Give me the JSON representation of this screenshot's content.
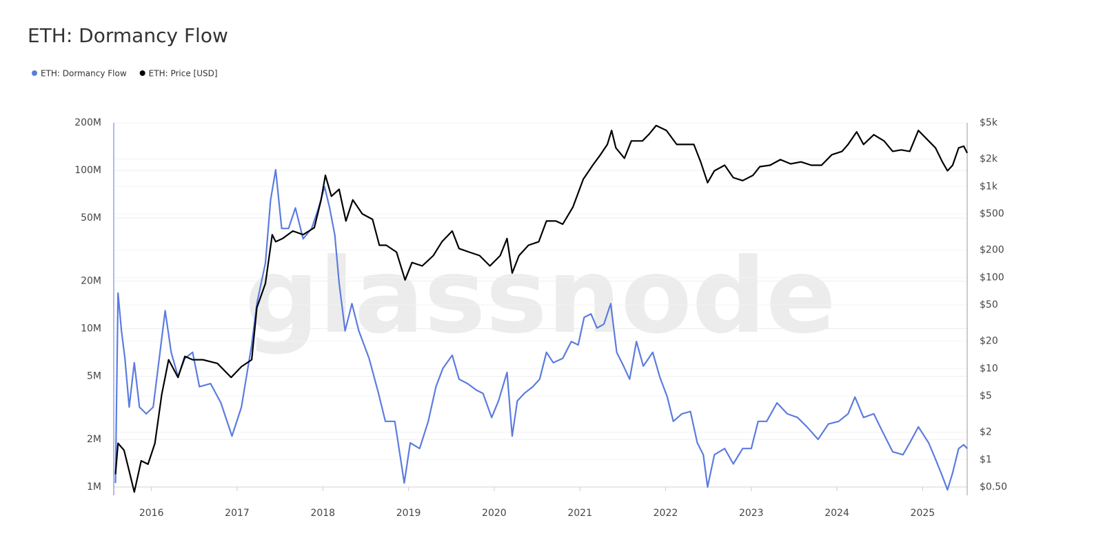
{
  "chart_data": {
    "type": "line",
    "title": "ETH: Dormancy Flow",
    "watermark": "glassnode",
    "yscale": "log",
    "y2scale": "log",
    "grid": true,
    "legend": "top-left",
    "xlim": [
      2015.56,
      2025.52
    ],
    "xticks": [
      2016,
      2017,
      2018,
      2019,
      2020,
      2021,
      2022,
      2023,
      2024,
      2025
    ],
    "ylim": [
      1000000,
      200000000
    ],
    "yticks": [
      {
        "value": 1000000,
        "label": "1M"
      },
      {
        "value": 2000000,
        "label": "2M"
      },
      {
        "value": 5000000,
        "label": "5M"
      },
      {
        "value": 10000000,
        "label": "10M"
      },
      {
        "value": 20000000,
        "label": "20M"
      },
      {
        "value": 50000000,
        "label": "50M"
      },
      {
        "value": 100000000,
        "label": "100M"
      },
      {
        "value": 200000000,
        "label": "200M"
      }
    ],
    "y2lim": [
      0.5,
      5000
    ],
    "y2ticks": [
      {
        "value": 0.5,
        "label": "$0.50"
      },
      {
        "value": 1,
        "label": "$1"
      },
      {
        "value": 2,
        "label": "$2"
      },
      {
        "value": 5,
        "label": "$5"
      },
      {
        "value": 10,
        "label": "$10"
      },
      {
        "value": 20,
        "label": "$20"
      },
      {
        "value": 50,
        "label": "$50"
      },
      {
        "value": 100,
        "label": "$100"
      },
      {
        "value": 200,
        "label": "$200"
      },
      {
        "value": 500,
        "label": "$500"
      },
      {
        "value": 1000,
        "label": "$1k"
      },
      {
        "value": 2000,
        "label": "$2k"
      },
      {
        "value": 5000,
        "label": "$5k"
      }
    ],
    "series": [
      {
        "name": "ETH: Dormancy Flow",
        "color": "#5b7be0",
        "axis": "y",
        "x": [
          2015.58,
          2015.61,
          2015.65,
          2015.69,
          2015.74,
          2015.8,
          2015.86,
          2015.94,
          2016.02,
          2016.1,
          2016.16,
          2016.23,
          2016.31,
          2016.39,
          2016.48,
          2016.56,
          2016.69,
          2016.81,
          2016.94,
          2017.05,
          2017.17,
          2017.23,
          2017.33,
          2017.39,
          2017.45,
          2017.52,
          2017.6,
          2017.68,
          2017.77,
          2017.87,
          2017.95,
          2018.02,
          2018.08,
          2018.14,
          2018.19,
          2018.26,
          2018.34,
          2018.42,
          2018.54,
          2018.65,
          2018.73,
          2018.84,
          2018.9,
          2018.95,
          2019.02,
          2019.13,
          2019.23,
          2019.32,
          2019.4,
          2019.51,
          2019.59,
          2019.69,
          2019.79,
          2019.87,
          2019.97,
          2020.05,
          2020.15,
          2020.21,
          2020.27,
          2020.35,
          2020.45,
          2020.53,
          2020.61,
          2020.69,
          2020.8,
          2020.9,
          2020.98,
          2021.05,
          2021.13,
          2021.2,
          2021.28,
          2021.36,
          2021.43,
          2021.51,
          2021.58,
          2021.66,
          2021.74,
          2021.85,
          2021.93,
          2022.02,
          2022.09,
          2022.19,
          2022.29,
          2022.37,
          2022.44,
          2022.49,
          2022.57,
          2022.69,
          2022.79,
          2022.9,
          2023.0,
          2023.08,
          2023.18,
          2023.3,
          2023.42,
          2023.54,
          2023.65,
          2023.78,
          2023.9,
          2024.02,
          2024.13,
          2024.21,
          2024.31,
          2024.43,
          2024.53,
          2024.65,
          2024.77,
          2024.85,
          2024.95,
          2025.07,
          2025.15,
          2025.23,
          2025.29,
          2025.35,
          2025.42,
          2025.48,
          2025.52
        ],
        "values": [
          1060000.0,
          16800000.0,
          9700000.0,
          6500000.0,
          3200000.0,
          6100000.0,
          3200000.0,
          2900000.0,
          3200000.0,
          7100000.0,
          13000000.0,
          7100000.0,
          5000000.0,
          6500000.0,
          7100000.0,
          4300000.0,
          4500000.0,
          3400000.0,
          2100000.0,
          3200000.0,
          7900000.0,
          14400000.0,
          26000000.0,
          65000000.0,
          101000000.0,
          43000000.0,
          43000000.0,
          58000000.0,
          37000000.0,
          43000000.0,
          58000000.0,
          79000000.0,
          58000000.0,
          39000000.0,
          19500000.0,
          9700000.0,
          14400000.0,
          9700000.0,
          6500000.0,
          3900000.0,
          2600000.0,
          2600000.0,
          1600000.0,
          1060000.0,
          1900000.0,
          1750000.0,
          2600000.0,
          4300000.0,
          5600000.0,
          6800000.0,
          4800000.0,
          4500000.0,
          4100000.0,
          3900000.0,
          2750000.0,
          3500000.0,
          5300000.0,
          2100000.0,
          3500000.0,
          3900000.0,
          4300000.0,
          4800000.0,
          7100000.0,
          6100000.0,
          6500000.0,
          8300000.0,
          7900000.0,
          11800000.0,
          12400000.0,
          10100000.0,
          10700000.0,
          14400000.0,
          7100000.0,
          5800000.0,
          4800000.0,
          8300000.0,
          5800000.0,
          7100000.0,
          5000000.0,
          3700000.0,
          2600000.0,
          2900000.0,
          3000000.0,
          1900000.0,
          1600000.0,
          1000000.0,
          1600000.0,
          1750000.0,
          1400000.0,
          1750000.0,
          1750000.0,
          2600000.0,
          2600000.0,
          3400000.0,
          2900000.0,
          2750000.0,
          2400000.0,
          2000000.0,
          2500000.0,
          2600000.0,
          2900000.0,
          3700000.0,
          2750000.0,
          2900000.0,
          2250000.0,
          1670000.0,
          1600000.0,
          1900000.0,
          2400000.0,
          1900000.0,
          1500000.0,
          1170000.0,
          960000.0,
          1230000.0,
          1750000.0,
          1850000.0,
          1750000.0
        ]
      },
      {
        "name": "ETH: Price [USD]",
        "color": "#000000",
        "axis": "y2",
        "x": [
          2015.58,
          2015.61,
          2015.68,
          2015.74,
          2015.8,
          2015.88,
          2015.96,
          2016.04,
          2016.12,
          2016.2,
          2016.31,
          2016.39,
          2016.48,
          2016.6,
          2016.77,
          2016.93,
          2017.05,
          2017.17,
          2017.23,
          2017.33,
          2017.41,
          2017.45,
          2017.53,
          2017.65,
          2017.77,
          2017.9,
          2017.98,
          2018.03,
          2018.1,
          2018.19,
          2018.27,
          2018.35,
          2018.46,
          2018.58,
          2018.66,
          2018.74,
          2018.86,
          2018.96,
          2019.04,
          2019.16,
          2019.29,
          2019.39,
          2019.51,
          2019.59,
          2019.71,
          2019.83,
          2019.95,
          2020.07,
          2020.15,
          2020.21,
          2020.29,
          2020.4,
          2020.52,
          2020.61,
          2020.72,
          2020.8,
          2020.92,
          2021.04,
          2021.15,
          2021.24,
          2021.32,
          2021.37,
          2021.42,
          2021.52,
          2021.6,
          2021.73,
          2021.81,
          2021.89,
          2022.01,
          2022.13,
          2022.23,
          2022.33,
          2022.41,
          2022.49,
          2022.57,
          2022.69,
          2022.79,
          2022.9,
          2023.02,
          2023.1,
          2023.22,
          2023.34,
          2023.46,
          2023.58,
          2023.7,
          2023.82,
          2023.94,
          2024.06,
          2024.13,
          2024.23,
          2024.31,
          2024.43,
          2024.55,
          2024.65,
          2024.75,
          2024.85,
          2024.95,
          2025.07,
          2025.15,
          2025.23,
          2025.29,
          2025.35,
          2025.42,
          2025.48,
          2025.52
        ],
        "values": [
          0.69,
          1.51,
          1.27,
          0.75,
          0.44,
          0.97,
          0.89,
          1.51,
          5.2,
          12.5,
          8.0,
          13.6,
          12.5,
          12.5,
          11.4,
          8.0,
          10.5,
          12.5,
          46.6,
          86,
          295,
          247,
          268,
          324,
          295,
          352,
          712,
          1325,
          780,
          930,
          417,
          712,
          500,
          435,
          226,
          226,
          190,
          94,
          146,
          134,
          174,
          247,
          324,
          208,
          190,
          174,
          134,
          174,
          268,
          112,
          174,
          226,
          247,
          417,
          417,
          385,
          596,
          1200,
          1710,
          2228,
          2890,
          4120,
          2650,
          2040,
          3160,
          3160,
          3775,
          4660,
          4120,
          2890,
          2890,
          2890,
          1860,
          1100,
          1485,
          1710,
          1250,
          1160,
          1325,
          1650,
          1710,
          1970,
          1770,
          1860,
          1710,
          1710,
          2228,
          2430,
          2890,
          3980,
          2890,
          3700,
          3160,
          2430,
          2520,
          2430,
          4120,
          3160,
          2650,
          1860,
          1485,
          1710,
          2650,
          2770,
          2330
        ]
      }
    ]
  }
}
